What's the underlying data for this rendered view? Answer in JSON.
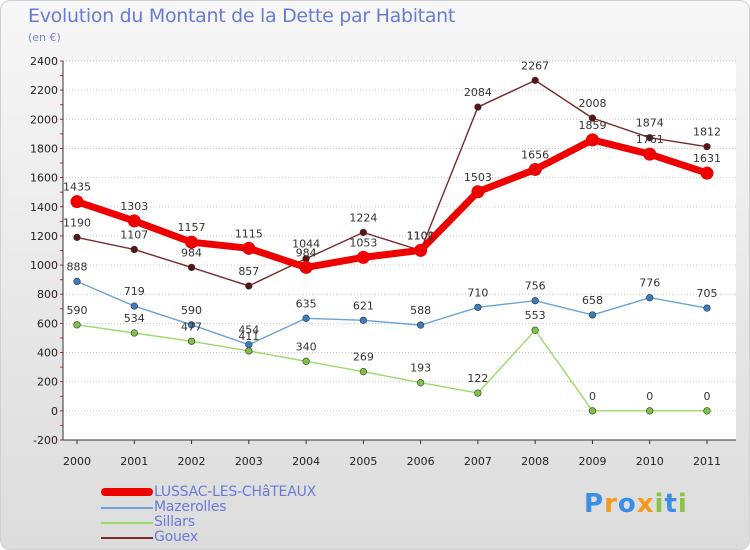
{
  "title": "Evolution du Montant de la Dette par Habitant",
  "subtitle": "(en €)",
  "logo": {
    "letters": [
      {
        "ch": "P",
        "color": "#3a8ee6"
      },
      {
        "ch": "r",
        "color": "#f39a1c"
      },
      {
        "ch": "o",
        "color": "#3a8ee6"
      },
      {
        "ch": "x",
        "color": "#f39a1c"
      },
      {
        "ch": "i",
        "color": "#8bc34a"
      },
      {
        "ch": "t",
        "color": "#3a8ee6"
      },
      {
        "ch": "i",
        "color": "#8bc34a"
      }
    ]
  },
  "chart_data": {
    "type": "line",
    "title": "Evolution du Montant de la Dette par Habitant",
    "subtitle": "(en €)",
    "xlabel": "",
    "ylabel": "",
    "x": [
      "2000",
      "2001",
      "2002",
      "2003",
      "2004",
      "2005",
      "2006",
      "2007",
      "2008",
      "2009",
      "2010",
      "2011"
    ],
    "ylim": [
      -200,
      2400
    ],
    "yticks": [
      -200,
      0,
      200,
      400,
      600,
      800,
      1000,
      1200,
      1400,
      1600,
      1800,
      2000,
      2200,
      2400
    ],
    "grid": "horizontal dotted",
    "legend_position": "bottom-left",
    "series": [
      {
        "name": "Mazerolles",
        "color": "#6aa3d6",
        "marker": "#3a7cc0",
        "values": [
          888,
          719,
          590,
          454,
          635,
          621,
          588,
          710,
          756,
          658,
          776,
          705
        ],
        "labels": [
          "888",
          "719",
          "590",
          "454",
          "635",
          "621",
          "588",
          "710",
          "756",
          "658",
          "776",
          "705"
        ]
      },
      {
        "name": "Sillars",
        "color": "#9ada6a",
        "marker": "#7cc544",
        "values": [
          590,
          534,
          477,
          411,
          340,
          269,
          193,
          122,
          553,
          0,
          0,
          0
        ],
        "labels": [
          "590",
          "534",
          "477",
          "411",
          "340",
          "269",
          "193",
          "122",
          "553",
          "0",
          "0",
          "0"
        ]
      },
      {
        "name": "Gouex",
        "color": "#7a2a2a",
        "marker": "#5a1414",
        "values": [
          1190,
          1107,
          984,
          857,
          1044,
          1224,
          1100,
          2084,
          2267,
          2008,
          1874,
          1812
        ],
        "labels": [
          "1190",
          "1107",
          "984",
          "857",
          "1044",
          "1224",
          "1100",
          "2084",
          "2267",
          "2008",
          "1874",
          "1812"
        ]
      },
      {
        "name": "LUSSAC-LES-CHâTEAUX",
        "color": "#ee0000",
        "marker": "#ee0000",
        "main": true,
        "values": [
          1435,
          1303,
          1157,
          1115,
          984,
          1053,
          1101,
          1503,
          1656,
          1859,
          1761,
          1631
        ],
        "labels": [
          "1435",
          "1303",
          "1157",
          "1115",
          "984",
          "1053",
          "1101",
          "1503",
          "1656",
          "1859",
          "1761",
          "1631"
        ]
      }
    ],
    "legend": [
      {
        "name": "LUSSAC-LES-CHâTEAUX",
        "color": "#ee0000",
        "thick": true
      },
      {
        "name": "Mazerolles",
        "color": "#6aa3d6"
      },
      {
        "name": "Sillars",
        "color": "#9ada6a"
      },
      {
        "name": "Gouex",
        "color": "#7a2a2a"
      }
    ]
  }
}
